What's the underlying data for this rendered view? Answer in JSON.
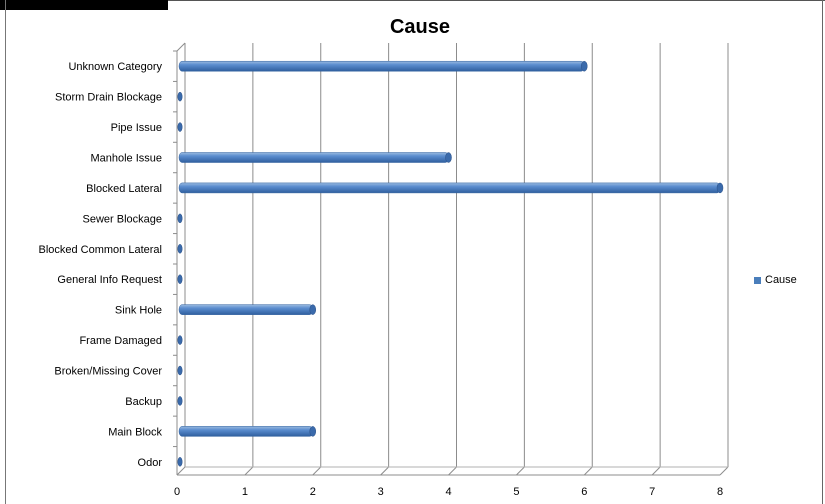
{
  "chart_data": {
    "type": "bar",
    "orientation": "horizontal",
    "title": "Cause",
    "categories": [
      "Unknown Category",
      "Storm Drain Blockage",
      "Pipe Issue",
      "Manhole Issue",
      "Blocked Lateral",
      "Sewer Blockage",
      "Blocked Common Lateral",
      "General Info Request",
      "Sink Hole",
      "Frame Damaged",
      "Broken/Missing Cover",
      "Backup",
      "Main Block",
      "Odor"
    ],
    "series": [
      {
        "name": "Cause",
        "values": [
          6,
          0,
          0,
          4,
          8,
          0,
          0,
          0,
          2,
          0,
          0,
          0,
          2,
          0
        ]
      }
    ],
    "xlim": [
      0,
      8
    ],
    "xticks": [
      0,
      1,
      2,
      3,
      4,
      5,
      6,
      7,
      8
    ],
    "grid": true,
    "legend": "right",
    "bar_color": "#4a7ebb"
  }
}
